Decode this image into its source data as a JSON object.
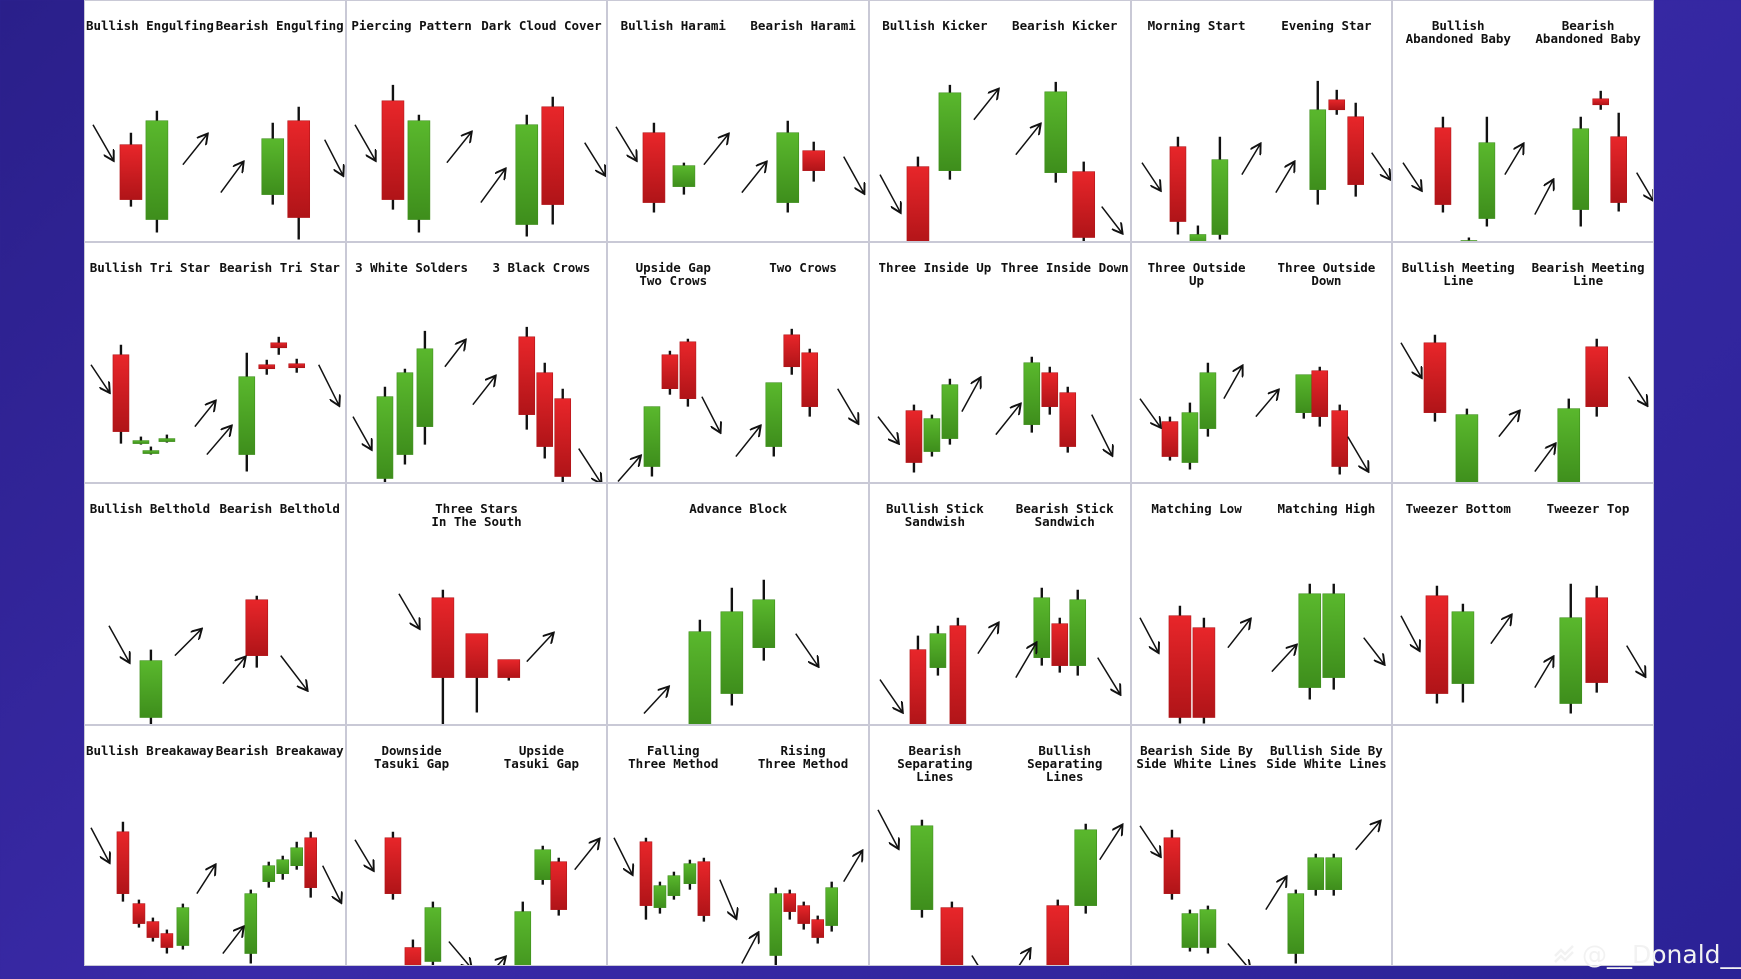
{
  "colors": {
    "bull": "#5ab82d",
    "bullDark": "#3e8e1c",
    "bear": "#e8262a",
    "bearDark": "#b01418",
    "wick": "#111111"
  },
  "watermark": {
    "text": "@__Donald__"
  },
  "cells": [
    {
      "labels": [
        "Bullish Engulfing",
        "Bearish Engulfing"
      ]
    },
    {
      "labels": [
        "Piercing Pattern",
        "Dark Cloud Cover"
      ]
    },
    {
      "labels": [
        "Bullish Harami",
        "Bearish Harami"
      ]
    },
    {
      "labels": [
        "Bullish Kicker",
        "Bearish Kicker"
      ]
    },
    {
      "labels": [
        "Morning Start",
        "Evening Star"
      ]
    },
    {
      "labels": [
        "Bullish\nAbandoned Baby",
        "Bearish\nAbandoned Baby"
      ]
    },
    {
      "labels": [
        "Bullish Tri Star",
        "Bearish Tri Star"
      ]
    },
    {
      "labels": [
        "3 White Solders",
        "3 Black Crows"
      ]
    },
    {
      "labels": [
        "Upside Gap\nTwo Crows",
        "Two Crows"
      ]
    },
    {
      "labels": [
        "Three Inside Up",
        "Three Inside Down"
      ]
    },
    {
      "labels": [
        "Three Outside\nUp",
        "Three Outside\nDown"
      ]
    },
    {
      "labels": [
        "Bullish Meeting\nLine",
        "Bearish Meeting\nLine"
      ]
    },
    {
      "labels": [
        "Bullish Belthold",
        "Bearish Belthold"
      ]
    },
    {
      "labels": [
        "Three Stars\nIn The South"
      ]
    },
    {
      "labels": [
        "Advance Block"
      ]
    },
    {
      "labels": [
        "Bullish Stick\nSandwish",
        "Bearish Stick\nSandwich"
      ]
    },
    {
      "labels": [
        "Matching Low",
        "Matching High"
      ]
    },
    {
      "labels": [
        "Tweezer Bottom",
        "Tweezer Top"
      ]
    },
    {
      "labels": [
        "Bullish Breakaway",
        "Bearish Breakaway"
      ]
    },
    {
      "labels": [
        "Downside\nTasuki Gap",
        "Upside\nTasuki Gap"
      ]
    },
    {
      "labels": [
        "Falling\nThree Method",
        "Rising\nThree Method"
      ]
    },
    {
      "labels": [
        "Bearish Separating\nLines",
        "Bullish Separating\nLines"
      ]
    },
    {
      "labels": [
        "Bearish Side By\nSide White Lines",
        "Bullish Side By\nSide White Lines"
      ]
    },
    {
      "labels": []
    }
  ]
}
